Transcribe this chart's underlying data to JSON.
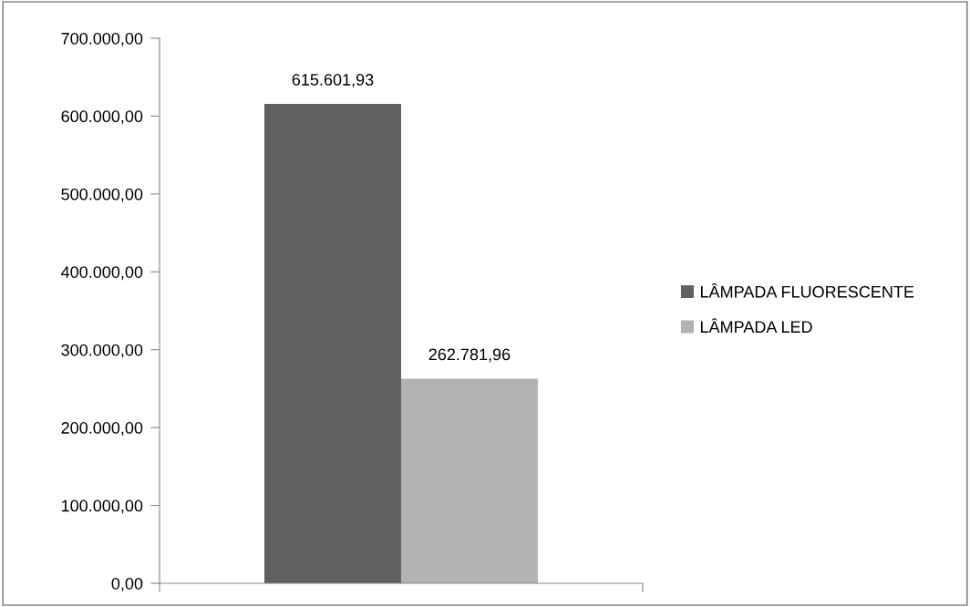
{
  "chart_data": {
    "type": "bar",
    "categories": [
      null
    ],
    "series": [
      {
        "name": "LÂMPADA FLUORESCENTE",
        "color": "#606060",
        "values": [
          615601.93
        ],
        "value_labels": [
          "615.601,93"
        ]
      },
      {
        "name": "LÂMPADA LED",
        "color": "#b2b2b2",
        "values": [
          262781.96
        ],
        "value_labels": [
          "262.781,96"
        ]
      }
    ],
    "ylim": [
      0,
      700000
    ],
    "yticks": [
      {
        "value": 0,
        "label": "0,00"
      },
      {
        "value": 100000,
        "label": "100.000,00"
      },
      {
        "value": 200000,
        "label": "200.000,00"
      },
      {
        "value": 300000,
        "label": "300.000,00"
      },
      {
        "value": 400000,
        "label": "400.000,00"
      },
      {
        "value": 500000,
        "label": "500.000,00"
      },
      {
        "value": 600000,
        "label": "600.000,00"
      },
      {
        "value": 700000,
        "label": "700.000,00"
      }
    ],
    "grid": false,
    "legend": "right"
  }
}
